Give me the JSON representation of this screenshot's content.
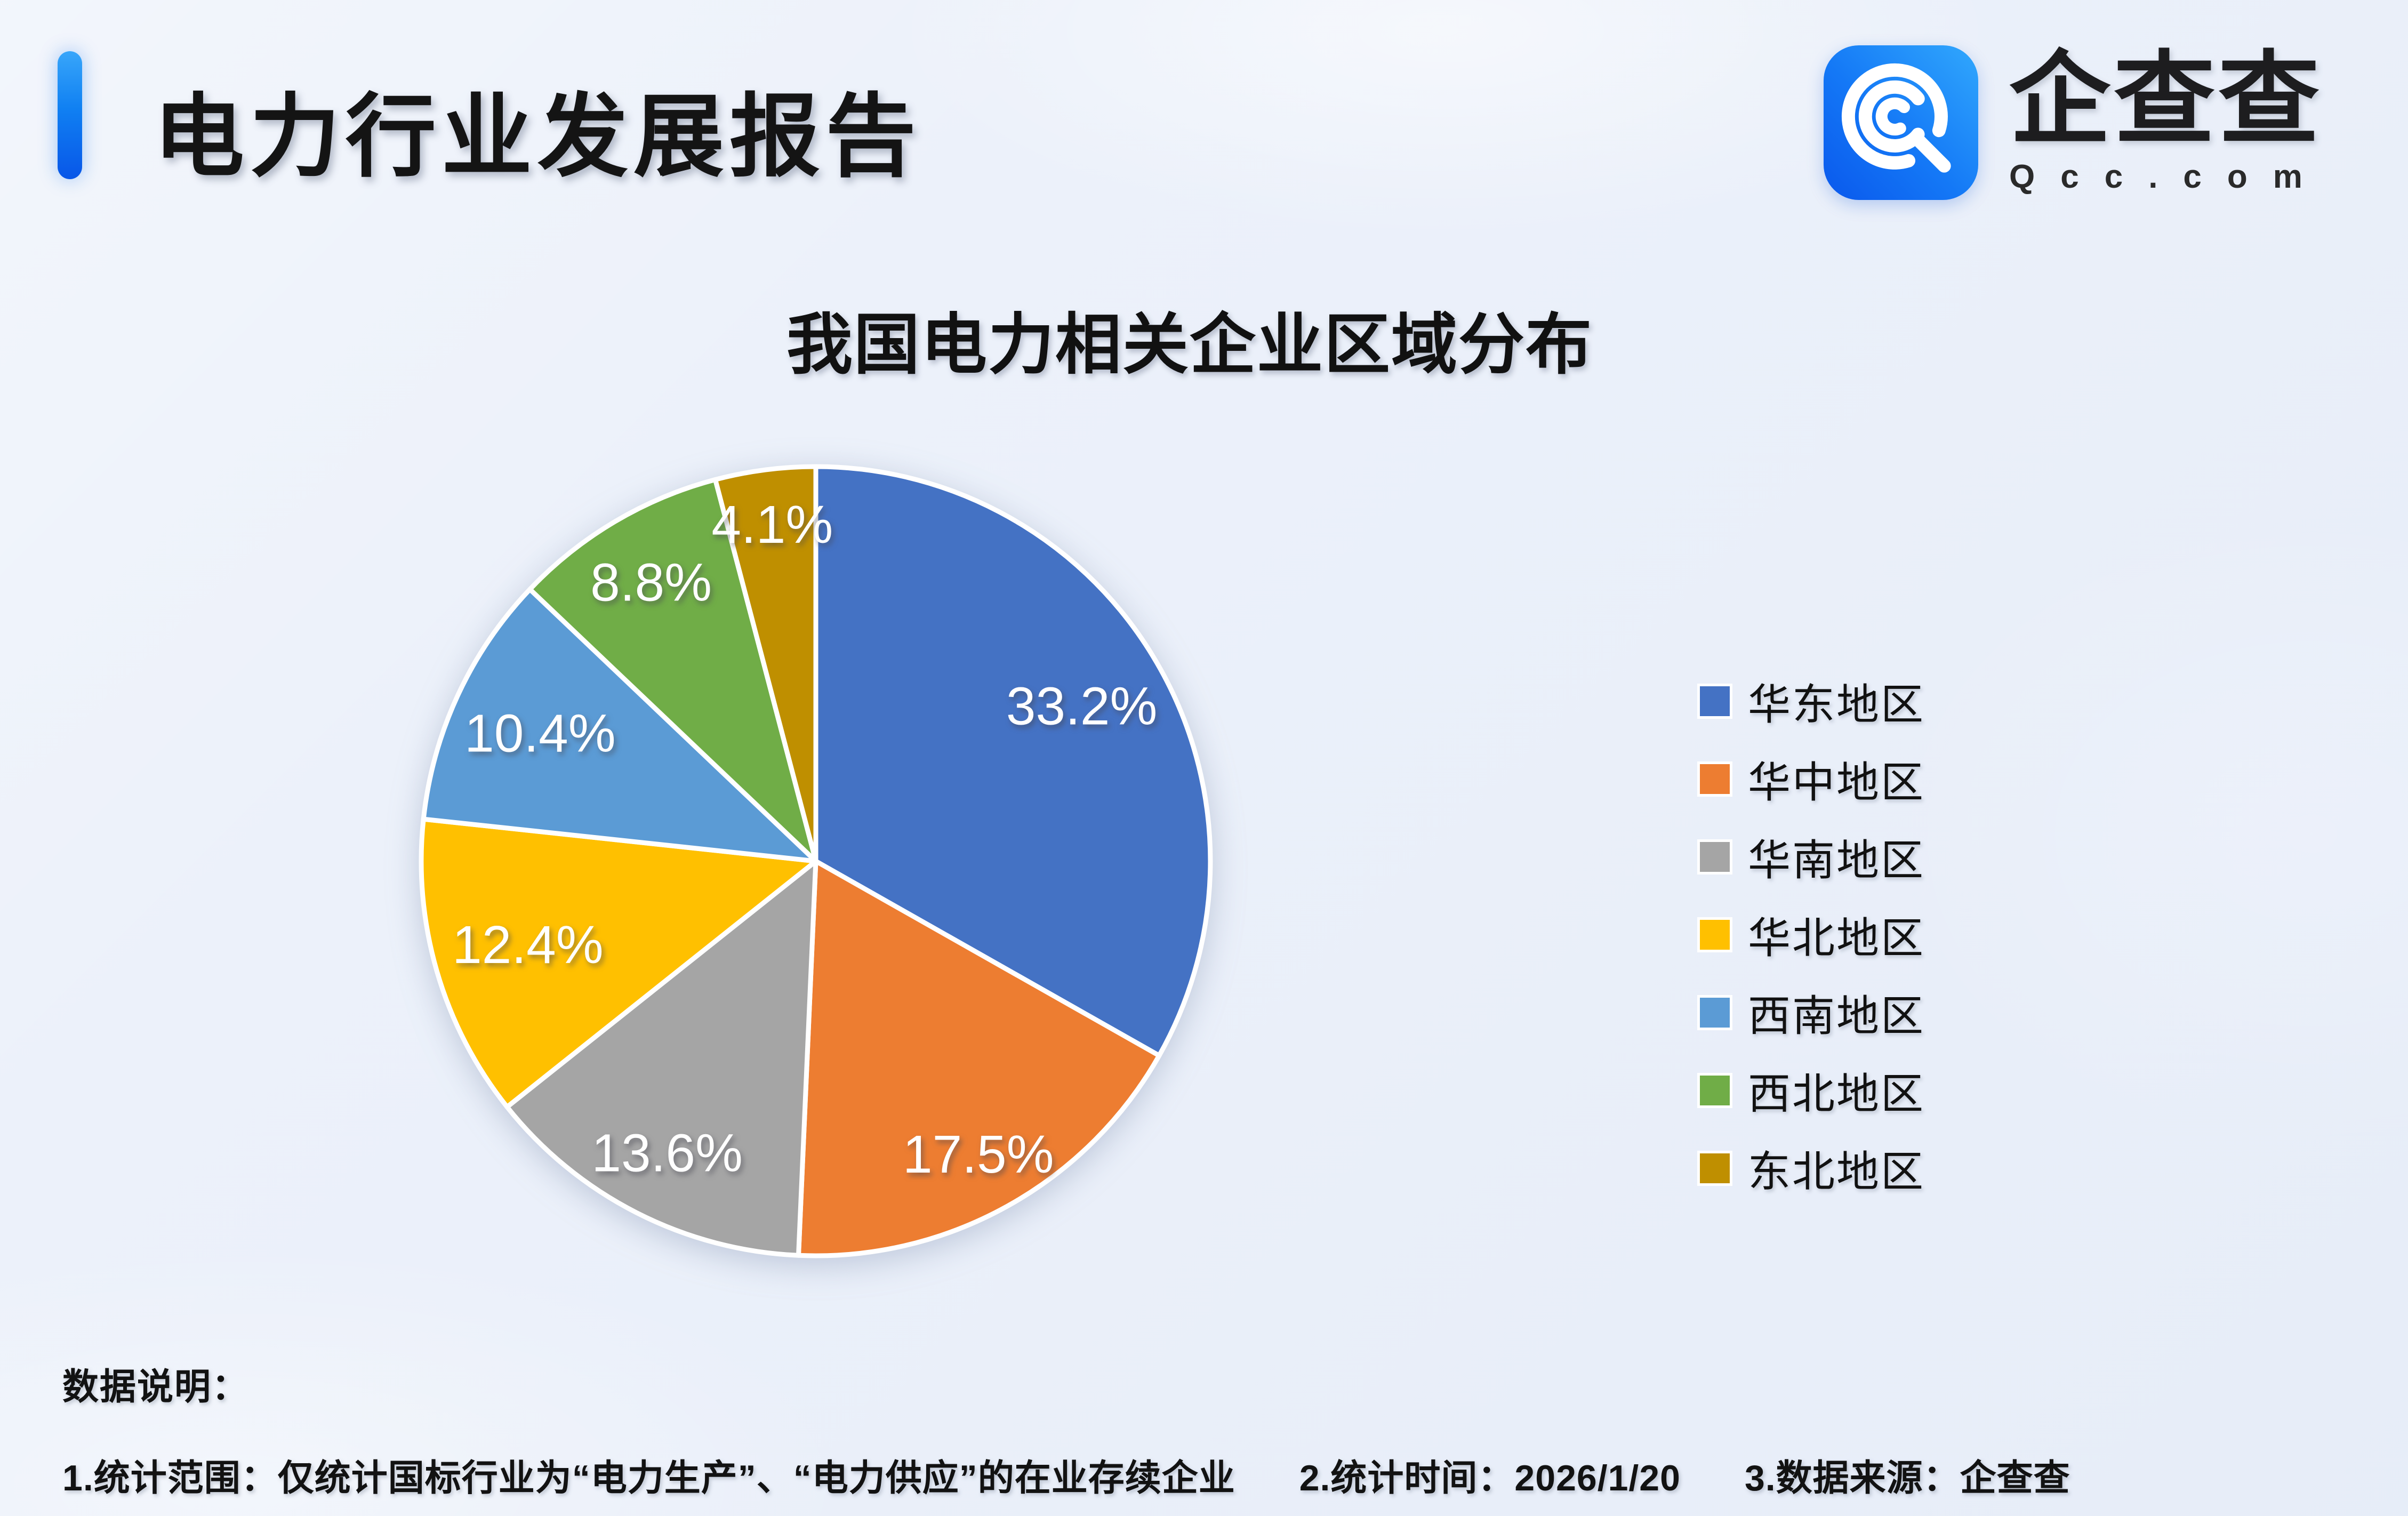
{
  "page": {
    "title": "电力行业发展报告",
    "logo": {
      "name": "企查查",
      "domain": "Qcc.com"
    },
    "footer": {
      "heading": "数据说明：",
      "note1": "1.统计范围：仅统计国标行业为“电力生产”、“电力供应”的在业存续企业",
      "note2": "2.统计时间：2026/1/20",
      "note3": "3.数据来源：企查查"
    },
    "accent_color": "#0A5CE8",
    "logo_blue": "#1478F6",
    "background_color": "#ECF1FA"
  },
  "chart_data": {
    "type": "pie",
    "title": "我国电力相关企业区域分布",
    "categories": [
      "华东地区",
      "华中地区",
      "华南地区",
      "华北地区",
      "西南地区",
      "西北地区",
      "东北地区"
    ],
    "values": [
      33.2,
      17.5,
      13.6,
      12.4,
      10.4,
      8.8,
      4.1
    ],
    "labels": [
      "33.2%",
      "17.5%",
      "13.6%",
      "12.4%",
      "10.4%",
      "8.8%",
      "4.1%"
    ],
    "unit": "%",
    "colors": [
      "#4472C4",
      "#ED7D31",
      "#A5A5A5",
      "#FFC000",
      "#5B9BD5",
      "#70AD47",
      "#BF8F00"
    ],
    "start_angle_deg": 0,
    "direction": "clockwise",
    "legend_position": "right",
    "slice_border_color": "#FFFFFF",
    "label_color": "#FFFFFF"
  }
}
